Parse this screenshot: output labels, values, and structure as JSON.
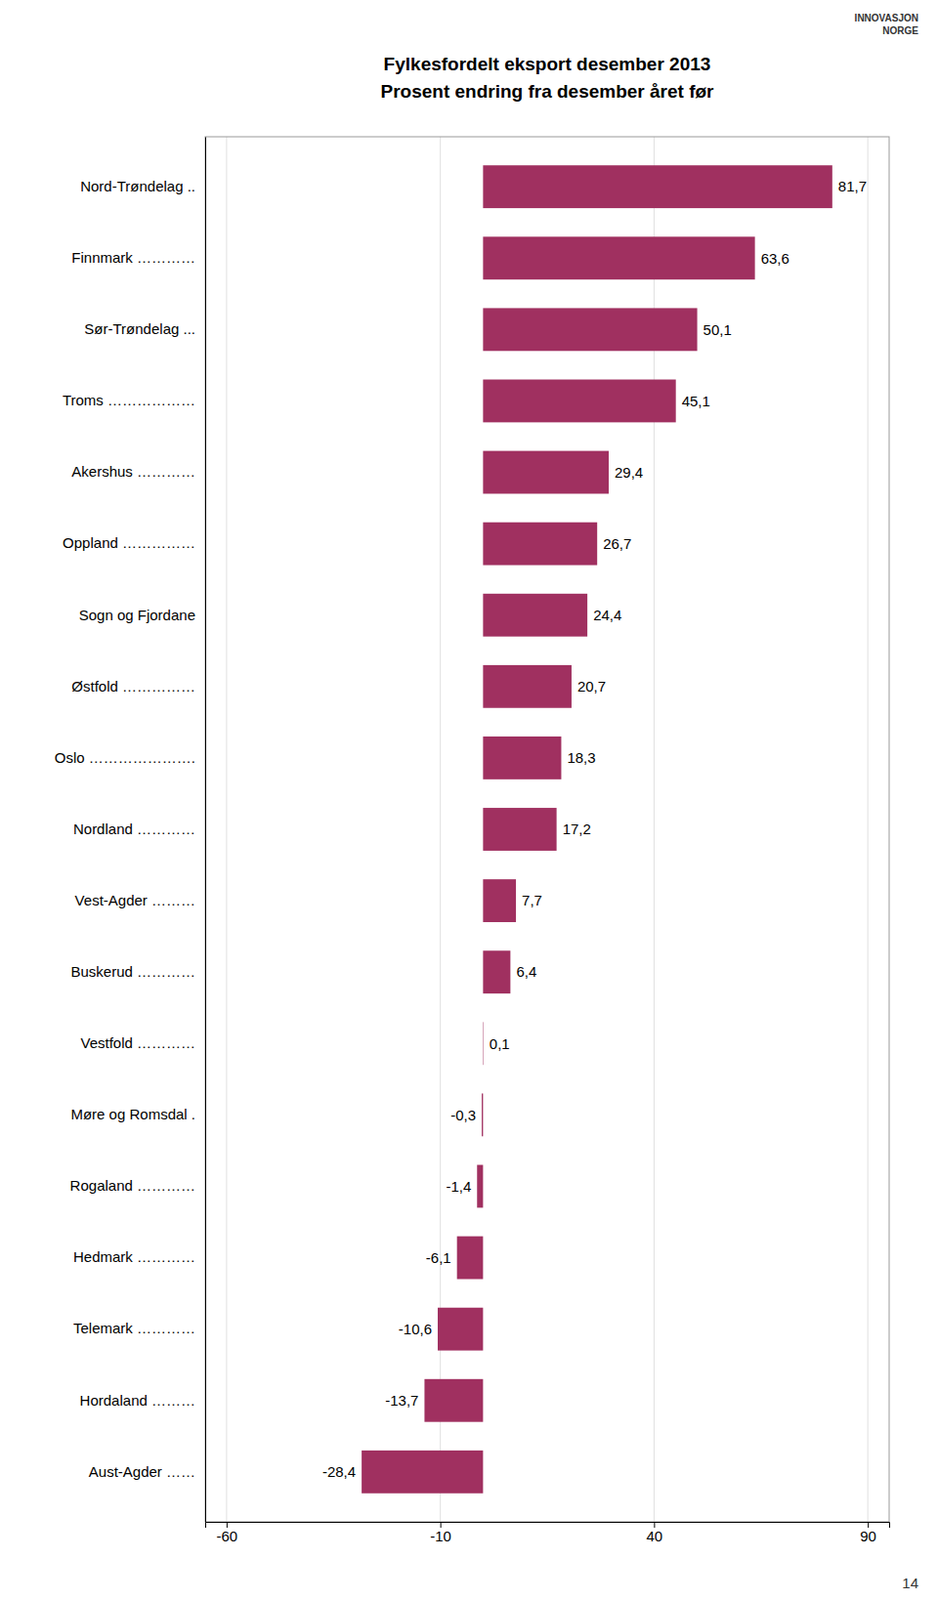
{
  "chart_data": {
    "type": "bar",
    "orientation": "horizontal",
    "title": "Fylkesfordelt eksport desember 2013",
    "subtitle": "Prosent endring fra desember året før",
    "categories": [
      "Nord-Trøndelag ..",
      "Finnmark …………",
      "Sør-Trøndelag ...",
      "Troms ………………",
      "Akershus …………",
      "Oppland ……………",
      "Sogn og Fjordane",
      "Østfold ……………",
      "Oslo ………………….",
      "Nordland …………",
      "Vest-Agder ………",
      "Buskerud …………",
      "Vestfold …………",
      "Møre og Romsdal .",
      "Rogaland …………",
      "Hedmark …………",
      "Telemark …………",
      "Hordaland ………",
      "Aust-Agder ……"
    ],
    "values": [
      81.7,
      63.6,
      50.1,
      45.1,
      29.4,
      26.7,
      24.4,
      20.7,
      18.3,
      17.2,
      7.7,
      6.4,
      0.1,
      -0.3,
      -1.4,
      -6.1,
      -10.6,
      -13.7,
      -28.4
    ],
    "value_labels": [
      "81,7",
      "63,6",
      "50,1",
      "45,1",
      "29,4",
      "26,7",
      "24,4",
      "20,7",
      "18,3",
      "17,2",
      "7,7",
      "6,4",
      "0,1",
      "-0,3",
      "-1,4",
      "-6,1",
      "-10,6",
      "-13,7",
      "-28,4"
    ],
    "data_labels": true,
    "color": "#A03060",
    "xlim": [
      -65,
      95
    ],
    "xticks": [
      -60,
      -10,
      40,
      90
    ],
    "grid": true,
    "annotations": [
      "INNOVASJON",
      "NORGE",
      "14"
    ]
  }
}
